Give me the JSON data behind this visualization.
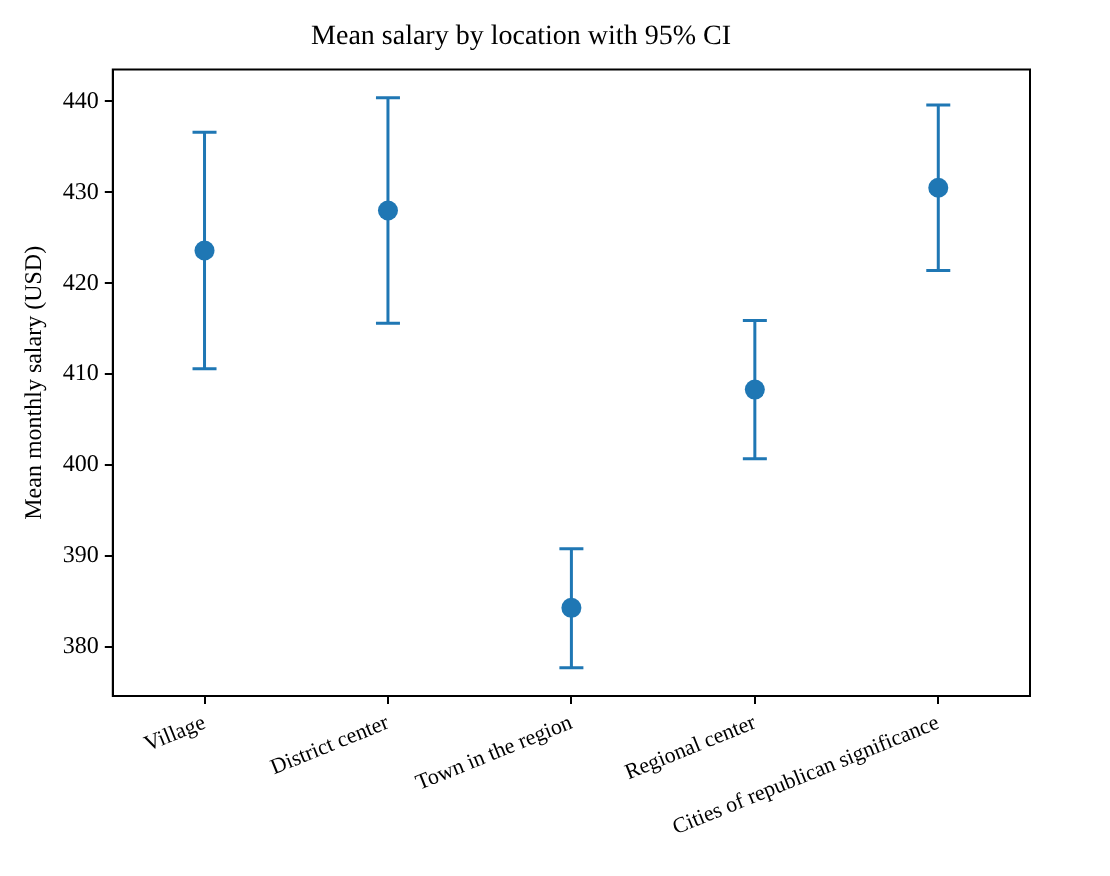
{
  "chart_data": {
    "type": "scatter",
    "title": "Mean salary by location with 95% CI",
    "ylabel": "Mean monthly salary (USD)",
    "categories": [
      "Village",
      "District center",
      "Town in the region",
      "Regional center",
      "Cities of republican significance"
    ],
    "series": [
      {
        "color": "#1f77b4",
        "values": [
          423.6,
          428.0,
          384.3,
          408.3,
          430.5
        ],
        "errors": [
          [
            410.6,
            436.6
          ],
          [
            415.6,
            440.4
          ],
          [
            377.7,
            390.8
          ],
          [
            400.7,
            415.9
          ],
          [
            421.4,
            439.6
          ]
        ]
      }
    ],
    "ylim": [
      374.6,
      443.5
    ],
    "yticks": [
      380,
      390,
      400,
      410,
      420,
      430,
      440
    ],
    "grid": false,
    "legend": false,
    "marker": "circle"
  }
}
